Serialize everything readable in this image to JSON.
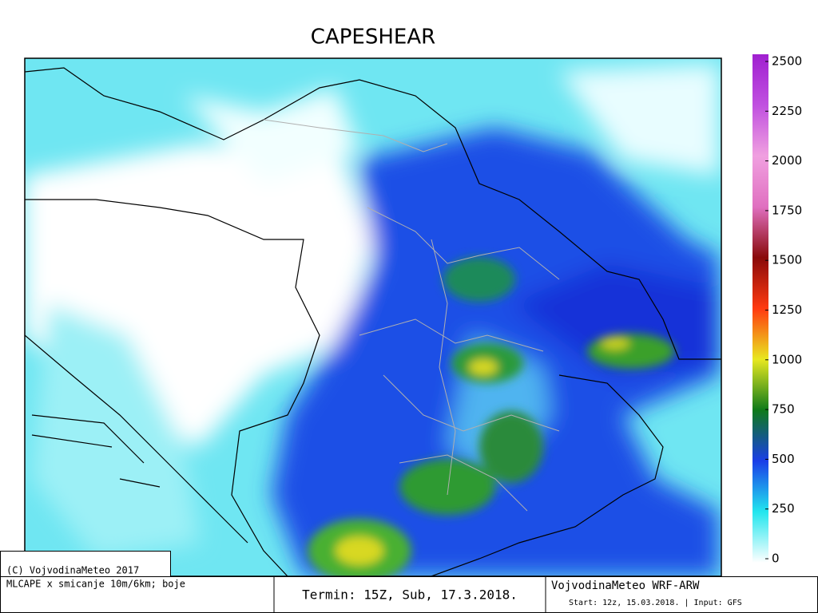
{
  "title": "CAPESHEAR",
  "colorbar": {
    "lim": [
      0,
      2500
    ],
    "ticks": [
      0,
      250,
      500,
      750,
      1000,
      1250,
      1500,
      1750,
      2000,
      2250,
      2500
    ],
    "colors": [
      "#ffffff",
      "#22e6ee",
      "#1a3ee8",
      "#0e7a1a",
      "#e8e820",
      "#ff3a10",
      "#8a0a0a",
      "#e070c0",
      "#f0a0e0",
      "#c050e0",
      "#a020d0"
    ]
  },
  "footer": {
    "copyright": "(C) VojvodinaMeteo 2017",
    "variable": "MLCAPE x smicanje 10m/6km; boje",
    "valid_time": "Termin: 15Z, Sub, 17.3.2018.",
    "model": "VojvodinaMeteo WRF-ARW",
    "run_info": "Start: 12z, 15.03.2018. | Input: GFS"
  }
}
